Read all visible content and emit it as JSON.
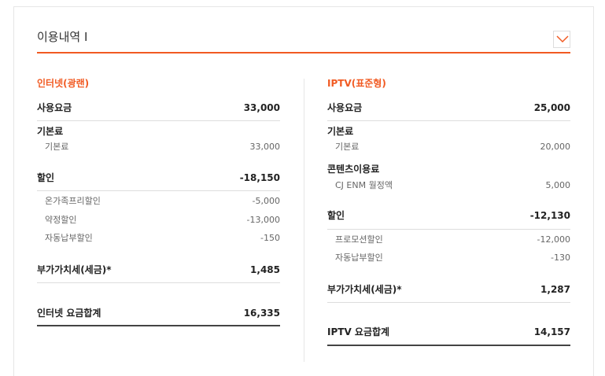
{
  "header": {
    "title": "이용내역 I",
    "toggle_icon": "chevron-down-icon",
    "accent": "#f15a22"
  },
  "internet": {
    "title": "인터넷(광랜)",
    "usage": {
      "label": "사용요금",
      "value": "33,000"
    },
    "base": {
      "label": "기본료",
      "items": [
        {
          "label": "기본료",
          "value": "33,000"
        }
      ]
    },
    "discount": {
      "label": "할인",
      "value": "-18,150",
      "items": [
        {
          "label": "온가족프리할인",
          "value": "-5,000"
        },
        {
          "label": "약정할인",
          "value": "-13,000"
        },
        {
          "label": "자동납부할인",
          "value": "-150"
        }
      ]
    },
    "vat": {
      "label": "부가가치세(세금)*",
      "value": "1,485"
    },
    "total": {
      "label": "인터넷 요금합계",
      "value": "16,335"
    }
  },
  "iptv": {
    "title": "IPTV(표준형)",
    "usage": {
      "label": "사용요금",
      "value": "25,000"
    },
    "base": {
      "label": "기본료",
      "items": [
        {
          "label": "기본료",
          "value": "20,000"
        }
      ]
    },
    "content": {
      "label": "콘텐츠이용료",
      "items": [
        {
          "label": "CJ ENM 월정액",
          "value": "5,000"
        }
      ]
    },
    "discount": {
      "label": "할인",
      "value": "-12,130",
      "items": [
        {
          "label": "프로모션할인",
          "value": "-12,000"
        },
        {
          "label": "자동납부할인",
          "value": "-130"
        }
      ]
    },
    "vat": {
      "label": "부가가치세(세금)*",
      "value": "1,287"
    },
    "total": {
      "label": "IPTV 요금합계",
      "value": "14,157"
    }
  }
}
